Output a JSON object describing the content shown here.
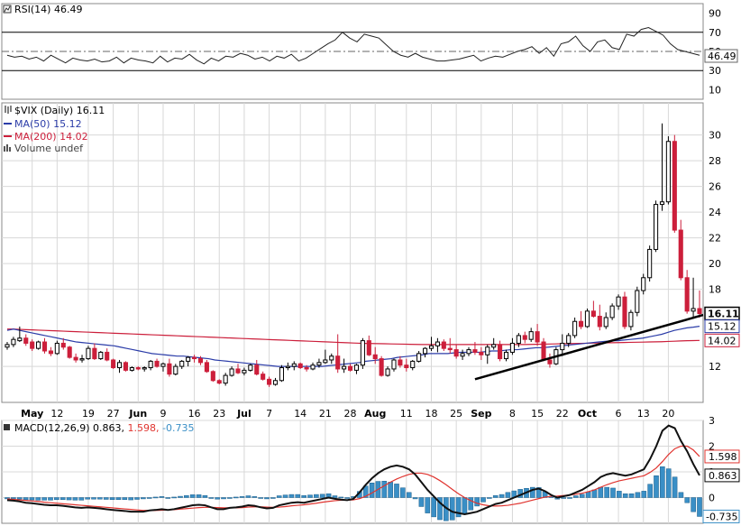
{
  "colors": {
    "price_up": "#000000",
    "price_down": "#cc1f3b",
    "ma50": "#2b3ca8",
    "ma200": "#cc1f3b",
    "rsi": "#222222",
    "macd": "#111111",
    "signal": "#e0342f",
    "histogram": "#3a8fc6",
    "trendline": "#000000"
  },
  "chart_data": [
    {
      "panel": "rsi",
      "type": "line",
      "title": "RSI(14) 46.49",
      "ylim": [
        0,
        100
      ],
      "yticks": [
        "90",
        "70",
        "50",
        "30",
        "10"
      ],
      "reference_lines": [
        70,
        30
      ],
      "last_value_label": "46.49",
      "values": [
        46,
        44,
        45,
        42,
        44,
        40,
        46,
        42,
        38,
        43,
        41,
        40,
        42,
        39,
        40,
        44,
        38,
        43,
        41,
        40,
        38,
        45,
        39,
        43,
        42,
        47,
        41,
        37,
        43,
        40,
        45,
        44,
        48,
        46,
        42,
        44,
        40,
        45,
        43,
        47,
        40,
        43,
        48,
        53,
        58,
        62,
        70,
        64,
        60,
        68,
        66,
        64,
        57,
        50,
        46,
        44,
        48,
        44,
        42,
        40,
        40,
        41,
        42,
        44,
        46,
        40,
        43,
        45,
        44,
        47,
        50,
        52,
        55,
        48,
        54,
        45,
        58,
        60,
        66,
        56,
        50,
        60,
        62,
        54,
        52,
        68,
        66,
        73,
        75,
        71,
        67,
        58,
        52,
        50,
        48,
        46
      ]
    },
    {
      "panel": "price",
      "type": "candlestick",
      "title": "$VIX (Daily) 16.11",
      "legend": [
        {
          "label": "MA(50) 15.12"
        },
        {
          "label": "MA(200) 14.02"
        },
        {
          "label": "Volume undef"
        }
      ],
      "ylim": [
        9.2,
        32.5
      ],
      "yticks": [
        "30",
        "28",
        "26",
        "24",
        "22",
        "20",
        "18",
        "12"
      ],
      "last_labels": {
        "close": "16.11",
        "ma50": "15.12",
        "ma200": "14.02"
      },
      "x_labels": [
        "May",
        "12",
        "19",
        "27",
        "Jun",
        "9",
        "16",
        "23",
        "Jul",
        "7",
        "14",
        "21",
        "28",
        "Aug",
        "11",
        "18",
        "25",
        "Sep",
        "8",
        "15",
        "22",
        "Oct",
        "6",
        "13",
        "20"
      ],
      "x_label_bold": [
        "May",
        "Jun",
        "Jul",
        "Aug",
        "Sep",
        "Oct"
      ],
      "ohlc": [
        [
          13.5,
          13.9,
          13.3,
          13.7
        ],
        [
          13.7,
          14.3,
          13.5,
          14.1
        ],
        [
          14.0,
          15.1,
          13.9,
          14.2
        ],
        [
          14.2,
          14.5,
          13.6,
          13.8
        ],
        [
          13.9,
          14.1,
          13.2,
          13.4
        ],
        [
          13.4,
          14.0,
          13.3,
          13.9
        ],
        [
          13.9,
          14.2,
          13.0,
          13.2
        ],
        [
          13.2,
          13.5,
          12.8,
          13.0
        ],
        [
          13.0,
          14.0,
          12.9,
          13.8
        ],
        [
          13.8,
          14.2,
          13.3,
          13.5
        ],
        [
          13.5,
          13.6,
          12.6,
          12.7
        ],
        [
          12.7,
          13.0,
          12.3,
          12.5
        ],
        [
          12.5,
          12.9,
          12.3,
          12.6
        ],
        [
          12.6,
          13.6,
          12.5,
          13.4
        ],
        [
          13.4,
          13.8,
          12.5,
          12.6
        ],
        [
          12.6,
          13.2,
          12.5,
          13.1
        ],
        [
          13.1,
          13.4,
          12.4,
          12.5
        ],
        [
          12.5,
          12.6,
          11.8,
          11.9
        ],
        [
          11.9,
          12.5,
          11.5,
          12.3
        ],
        [
          12.3,
          12.4,
          11.6,
          11.7
        ],
        [
          11.7,
          12.0,
          11.6,
          11.9
        ],
        [
          11.9,
          12.0,
          11.7,
          11.8
        ],
        [
          11.8,
          12.0,
          11.6,
          11.9
        ],
        [
          11.9,
          12.5,
          11.7,
          12.4
        ],
        [
          12.4,
          12.6,
          11.9,
          12.0
        ],
        [
          12.0,
          12.3,
          11.6,
          12.2
        ],
        [
          12.2,
          12.6,
          11.2,
          11.4
        ],
        [
          11.4,
          12.2,
          11.3,
          12.0
        ],
        [
          12.0,
          12.5,
          11.8,
          12.4
        ],
        [
          12.4,
          12.8,
          12.0,
          12.7
        ],
        [
          12.7,
          12.9,
          12.3,
          12.6
        ],
        [
          12.6,
          12.8,
          12.1,
          12.3
        ],
        [
          12.3,
          12.5,
          11.5,
          11.6
        ],
        [
          11.6,
          11.7,
          10.8,
          10.9
        ],
        [
          10.9,
          11.0,
          10.6,
          10.7
        ],
        [
          10.7,
          11.5,
          10.5,
          11.3
        ],
        [
          11.3,
          12.0,
          11.2,
          11.8
        ],
        [
          11.8,
          12.2,
          11.4,
          11.5
        ],
        [
          11.5,
          11.9,
          11.3,
          11.7
        ],
        [
          11.7,
          12.2,
          11.6,
          12.1
        ],
        [
          12.1,
          12.5,
          11.3,
          11.4
        ],
        [
          11.4,
          11.6,
          10.9,
          11.0
        ],
        [
          11.0,
          11.2,
          10.4,
          10.6
        ],
        [
          10.6,
          11.1,
          10.5,
          10.9
        ],
        [
          10.9,
          12.1,
          10.8,
          11.9
        ],
        [
          11.9,
          12.3,
          11.7,
          12.0
        ],
        [
          12.0,
          12.4,
          11.7,
          12.2
        ],
        [
          12.2,
          12.3,
          11.8,
          11.9
        ],
        [
          11.9,
          12.1,
          11.6,
          11.8
        ],
        [
          11.8,
          12.3,
          11.7,
          12.1
        ],
        [
          12.1,
          12.6,
          11.9,
          12.3
        ],
        [
          12.3,
          13.3,
          12.2,
          12.5
        ],
        [
          12.5,
          13.0,
          12.2,
          12.8
        ],
        [
          12.8,
          14.5,
          11.5,
          11.8
        ],
        [
          11.8,
          12.6,
          11.5,
          12.0
        ],
        [
          12.0,
          12.2,
          11.6,
          11.7
        ],
        [
          11.7,
          12.2,
          11.4,
          12.1
        ],
        [
          12.1,
          14.2,
          11.8,
          14.0
        ],
        [
          14.0,
          14.4,
          12.8,
          12.9
        ],
        [
          12.9,
          13.5,
          12.2,
          12.6
        ],
        [
          12.6,
          12.8,
          11.2,
          11.3
        ],
        [
          11.3,
          12.0,
          11.2,
          11.8
        ],
        [
          11.8,
          12.6,
          11.6,
          12.5
        ],
        [
          12.5,
          12.8,
          11.9,
          12.1
        ],
        [
          12.1,
          12.6,
          11.6,
          11.9
        ],
        [
          11.9,
          12.5,
          11.7,
          12.4
        ],
        [
          12.4,
          13.2,
          12.3,
          13.0
        ],
        [
          13.0,
          13.5,
          12.7,
          13.4
        ],
        [
          13.4,
          14.3,
          13.2,
          13.6
        ],
        [
          13.6,
          14.2,
          13.1,
          13.9
        ],
        [
          13.9,
          14.1,
          13.2,
          13.4
        ],
        [
          13.4,
          14.2,
          13.0,
          13.3
        ],
        [
          13.3,
          13.7,
          12.6,
          12.8
        ],
        [
          12.8,
          13.3,
          12.5,
          13.0
        ],
        [
          13.0,
          13.5,
          12.8,
          13.3
        ],
        [
          13.3,
          13.9,
          12.9,
          13.1
        ],
        [
          13.1,
          13.5,
          12.5,
          12.9
        ],
        [
          12.9,
          13.7,
          12.2,
          13.5
        ],
        [
          13.5,
          14.2,
          13.3,
          13.7
        ],
        [
          13.7,
          14.0,
          12.4,
          12.6
        ],
        [
          12.6,
          13.3,
          12.4,
          13.1
        ],
        [
          13.1,
          14.2,
          12.9,
          13.8
        ],
        [
          13.8,
          14.6,
          13.5,
          14.4
        ],
        [
          14.4,
          14.7,
          13.8,
          14.1
        ],
        [
          14.1,
          15.0,
          13.9,
          14.7
        ],
        [
          14.7,
          15.3,
          13.6,
          13.9
        ],
        [
          13.9,
          14.2,
          12.4,
          12.5
        ],
        [
          12.5,
          13.0,
          11.9,
          12.2
        ],
        [
          12.2,
          13.5,
          12.1,
          13.3
        ],
        [
          13.3,
          14.5,
          12.8,
          13.8
        ],
        [
          13.8,
          14.6,
          13.5,
          14.4
        ],
        [
          14.4,
          15.8,
          14.2,
          15.5
        ],
        [
          15.5,
          16.3,
          14.9,
          15.1
        ],
        [
          15.1,
          16.5,
          15.0,
          16.3
        ],
        [
          16.3,
          17.1,
          15.8,
          15.9
        ],
        [
          15.9,
          16.8,
          14.8,
          15.1
        ],
        [
          15.1,
          16.2,
          14.9,
          15.8
        ],
        [
          15.8,
          16.9,
          15.6,
          16.7
        ],
        [
          16.7,
          17.6,
          16.4,
          17.4
        ],
        [
          17.4,
          17.8,
          14.9,
          15.1
        ],
        [
          15.1,
          16.4,
          14.8,
          16.2
        ],
        [
          16.2,
          18.2,
          15.9,
          17.9
        ],
        [
          17.9,
          19.2,
          17.6,
          18.9
        ],
        [
          18.9,
          21.4,
          18.6,
          21.1
        ],
        [
          21.1,
          24.9,
          20.9,
          24.6
        ],
        [
          24.6,
          30.9,
          24.1,
          24.8
        ],
        [
          24.8,
          29.9,
          24.6,
          29.5
        ],
        [
          29.5,
          30.0,
          22.4,
          22.6
        ],
        [
          22.6,
          23.4,
          18.7,
          18.9
        ],
        [
          18.9,
          19.5,
          16.1,
          16.3
        ],
        [
          16.3,
          18.9,
          15.7,
          16.5
        ],
        [
          16.5,
          17.9,
          15.8,
          16.11
        ]
      ],
      "ma50": [
        14.8,
        14.9,
        14.8,
        14.7,
        14.6,
        14.5,
        14.4,
        14.3,
        14.2,
        14.1,
        14.0,
        13.9,
        13.85,
        13.8,
        13.75,
        13.7,
        13.65,
        13.6,
        13.5,
        13.4,
        13.3,
        13.2,
        13.1,
        13.0,
        12.95,
        12.9,
        12.85,
        12.8,
        12.8,
        12.75,
        12.7,
        12.65,
        12.6,
        12.5,
        12.45,
        12.4,
        12.35,
        12.3,
        12.25,
        12.2,
        12.15,
        12.1,
        12.05,
        12.0,
        12.0,
        12.0,
        12.0,
        12.0,
        12.0,
        12.0,
        12.0,
        12.05,
        12.1,
        12.15,
        12.2,
        12.25,
        12.3,
        12.4,
        12.45,
        12.5,
        12.55,
        12.6,
        12.7,
        12.75,
        12.8,
        12.85,
        12.9,
        13.0,
        13.0,
        13.0,
        13.0,
        13.05,
        13.1,
        13.1,
        13.1,
        13.1,
        13.15,
        13.2,
        13.2,
        13.25,
        13.3,
        13.3,
        13.35,
        13.4,
        13.45,
        13.45,
        13.5,
        13.55,
        13.6,
        13.65,
        13.7,
        13.75,
        13.8,
        13.85,
        13.9,
        13.95,
        14.0,
        14.0,
        14.05,
        14.1,
        14.15,
        14.2,
        14.3,
        14.4,
        14.5,
        14.65,
        14.8,
        14.9,
        15.0,
        15.05,
        15.12
      ],
      "ma200": [
        14.9,
        14.9,
        14.88,
        14.86,
        14.84,
        14.82,
        14.8,
        14.78,
        14.76,
        14.74,
        14.72,
        14.7,
        14.68,
        14.66,
        14.64,
        14.62,
        14.6,
        14.58,
        14.56,
        14.54,
        14.52,
        14.5,
        14.48,
        14.46,
        14.44,
        14.42,
        14.4,
        14.38,
        14.36,
        14.34,
        14.32,
        14.3,
        14.28,
        14.26,
        14.24,
        14.22,
        14.2,
        14.18,
        14.16,
        14.14,
        14.12,
        14.1,
        14.08,
        14.06,
        14.04,
        14.02,
        14.0,
        13.98,
        13.96,
        13.94,
        13.92,
        13.9,
        13.88,
        13.86,
        13.84,
        13.82,
        13.8,
        13.79,
        13.78,
        13.77,
        13.76,
        13.75,
        13.74,
        13.73,
        13.72,
        13.71,
        13.7,
        13.7,
        13.7,
        13.7,
        13.7,
        13.7,
        13.7,
        13.7,
        13.7,
        13.7,
        13.7,
        13.7,
        13.7,
        13.7,
        13.7,
        13.7,
        13.7,
        13.71,
        13.72,
        13.73,
        13.74,
        13.75,
        13.76,
        13.77,
        13.78,
        13.79,
        13.8,
        13.81,
        13.82,
        13.83,
        13.84,
        13.85,
        13.86,
        13.87,
        13.88,
        13.89,
        13.9,
        13.91,
        13.92,
        13.94,
        13.96,
        13.98,
        14.0,
        14.01,
        14.02
      ],
      "trendline": {
        "from_index": 75,
        "from_value": 11.0,
        "to_index": 111,
        "to_value": 16.0
      }
    },
    {
      "panel": "macd",
      "type": "line+histogram",
      "title_parts": [
        "MACD(12,26,9) 0.863,",
        "1.598,",
        "-0.735"
      ],
      "ylim": [
        -1.0,
        3.0
      ],
      "yticks": [
        "3",
        "2",
        "1",
        "0"
      ],
      "last_labels": {
        "signal": "1.598",
        "macd": "0.863",
        "hist": "-0.735"
      },
      "macd": [
        -0.1,
        -0.12,
        -0.15,
        -0.2,
        -0.22,
        -0.25,
        -0.28,
        -0.3,
        -0.3,
        -0.32,
        -0.35,
        -0.38,
        -0.4,
        -0.38,
        -0.4,
        -0.42,
        -0.45,
        -0.48,
        -0.5,
        -0.52,
        -0.55,
        -0.55,
        -0.55,
        -0.5,
        -0.48,
        -0.45,
        -0.48,
        -0.45,
        -0.4,
        -0.35,
        -0.3,
        -0.28,
        -0.3,
        -0.38,
        -0.45,
        -0.45,
        -0.4,
        -0.38,
        -0.35,
        -0.3,
        -0.32,
        -0.38,
        -0.42,
        -0.4,
        -0.3,
        -0.25,
        -0.2,
        -0.18,
        -0.2,
        -0.15,
        -0.1,
        -0.05,
        0.0,
        -0.05,
        -0.08,
        -0.1,
        -0.05,
        0.2,
        0.5,
        0.75,
        0.95,
        1.1,
        1.2,
        1.25,
        1.2,
        1.1,
        0.9,
        0.6,
        0.3,
        0.05,
        -0.2,
        -0.4,
        -0.55,
        -0.6,
        -0.65,
        -0.6,
        -0.55,
        -0.45,
        -0.35,
        -0.25,
        -0.2,
        -0.1,
        0.0,
        0.1,
        0.2,
        0.3,
        0.35,
        0.25,
        0.1,
        0.0,
        0.05,
        0.1,
        0.2,
        0.3,
        0.45,
        0.6,
        0.8,
        0.9,
        0.95,
        0.9,
        0.85,
        0.9,
        1.0,
        1.1,
        1.5,
        2.0,
        2.6,
        2.8,
        2.7,
        2.2,
        1.8,
        1.3,
        0.863
      ],
      "signal": [
        -0.05,
        -0.07,
        -0.09,
        -0.11,
        -0.13,
        -0.15,
        -0.18,
        -0.2,
        -0.22,
        -0.24,
        -0.26,
        -0.28,
        -0.3,
        -0.32,
        -0.34,
        -0.36,
        -0.38,
        -0.4,
        -0.42,
        -0.44,
        -0.46,
        -0.48,
        -0.5,
        -0.5,
        -0.5,
        -0.49,
        -0.48,
        -0.47,
        -0.45,
        -0.43,
        -0.41,
        -0.39,
        -0.38,
        -0.38,
        -0.39,
        -0.4,
        -0.4,
        -0.4,
        -0.39,
        -0.37,
        -0.36,
        -0.36,
        -0.37,
        -0.38,
        -0.37,
        -0.35,
        -0.32,
        -0.3,
        -0.28,
        -0.25,
        -0.22,
        -0.18,
        -0.15,
        -0.12,
        -0.1,
        -0.1,
        -0.09,
        -0.04,
        0.05,
        0.18,
        0.32,
        0.46,
        0.6,
        0.72,
        0.82,
        0.9,
        0.95,
        0.95,
        0.9,
        0.8,
        0.66,
        0.5,
        0.32,
        0.15,
        0.0,
        -0.12,
        -0.22,
        -0.28,
        -0.32,
        -0.33,
        -0.32,
        -0.3,
        -0.26,
        -0.22,
        -0.16,
        -0.1,
        -0.04,
        0.02,
        0.05,
        0.06,
        0.08,
        0.1,
        0.13,
        0.17,
        0.23,
        0.3,
        0.4,
        0.5,
        0.58,
        0.65,
        0.7,
        0.75,
        0.8,
        0.85,
        0.98,
        1.15,
        1.4,
        1.68,
        1.9,
        2.0,
        2.0,
        1.85,
        1.598
      ]
    }
  ]
}
